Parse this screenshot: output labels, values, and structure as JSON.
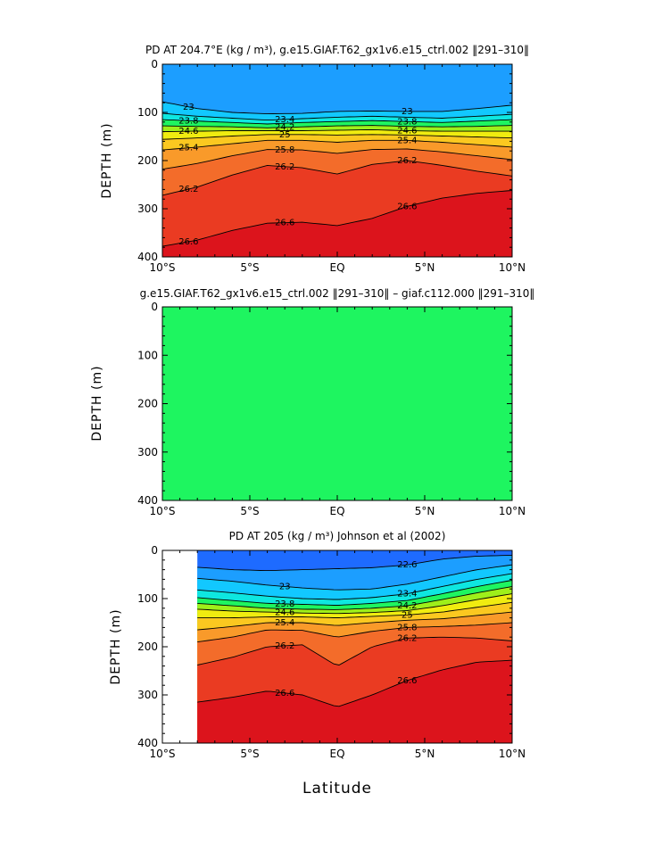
{
  "chart_data": [
    {
      "type": "heatmap",
      "title": "PD AT 204.7°E (kg / m³), g.e15.GIAF.T62_gx1v6.e15_ctrl.002 ‖291–310‖",
      "xlabel": "",
      "ylabel": "DEPTH (m)",
      "x_ticks": [
        "10°S",
        "5°S",
        "EQ",
        "5°N",
        "10°N"
      ],
      "y_ticks": [
        "0",
        "100",
        "200",
        "300",
        "400"
      ],
      "xlim": [
        -10,
        10
      ],
      "ylim": [
        400,
        0
      ],
      "contour_labels": [
        "23",
        "22.6",
        "23.4",
        "23.8",
        "24.2",
        "24.6",
        "25",
        "25.4",
        "25.8",
        "26.2",
        "26.6",
        "24.5",
        "25.8",
        "26.2"
      ],
      "contour_levels": [
        22.6,
        23,
        23.4,
        23.8,
        24.2,
        24.6,
        25,
        25.4,
        25.8,
        26.2,
        26.6
      ],
      "isopycnals": [
        {
          "level": 23.0,
          "x": [
            -10,
            -8,
            -6,
            -4,
            -2,
            0,
            2,
            4,
            6,
            8,
            10
          ],
          "y": [
            78,
            92,
            100,
            103,
            102,
            98,
            97,
            98,
            98,
            92,
            85
          ]
        },
        {
          "level": 23.4,
          "x": [
            -10,
            -8,
            -6,
            -4,
            -2,
            0,
            2,
            4,
            6,
            8,
            10
          ],
          "y": [
            102,
            108,
            112,
            116,
            113,
            110,
            108,
            110,
            112,
            108,
            104
          ]
        },
        {
          "level": 23.8,
          "x": [
            -10,
            -8,
            -6,
            -4,
            -2,
            0,
            2,
            4,
            6,
            8,
            10
          ],
          "y": [
            115,
            118,
            121,
            124,
            121,
            119,
            117,
            119,
            121,
            118,
            115
          ]
        },
        {
          "level": 24.2,
          "x": [
            -10,
            -8,
            -6,
            -4,
            -2,
            0,
            2,
            4,
            6,
            8,
            10
          ],
          "y": [
            128,
            129,
            130,
            132,
            130,
            128,
            127,
            129,
            130,
            129,
            127
          ]
        },
        {
          "level": 24.6,
          "x": [
            -10,
            -8,
            -6,
            -4,
            -2,
            0,
            2,
            4,
            6,
            8,
            10
          ],
          "y": [
            140,
            139,
            138,
            138,
            138,
            137,
            136,
            138,
            139,
            139,
            139
          ]
        },
        {
          "level": 25.0,
          "x": [
            -10,
            -8,
            -6,
            -4,
            -2,
            0,
            2,
            4,
            6,
            8,
            10
          ],
          "y": [
            156,
            153,
            149,
            146,
            146,
            147,
            146,
            147,
            149,
            151,
            153
          ]
        },
        {
          "level": 25.4,
          "x": [
            -10,
            -8,
            -6,
            -4,
            -2,
            0,
            2,
            4,
            6,
            8,
            10
          ],
          "y": [
            178,
            172,
            165,
            158,
            158,
            162,
            158,
            158,
            162,
            167,
            172
          ]
        },
        {
          "level": 25.8,
          "x": [
            -10,
            -8,
            -6,
            -4,
            -2,
            0,
            2,
            4,
            6,
            8,
            10
          ],
          "y": [
            218,
            206,
            190,
            177,
            178,
            185,
            177,
            176,
            182,
            190,
            198
          ]
        },
        {
          "level": 26.2,
          "x": [
            -10,
            -8,
            -6,
            -4,
            -2,
            0,
            2,
            4,
            6,
            8,
            10
          ],
          "y": [
            272,
            255,
            230,
            210,
            215,
            228,
            208,
            200,
            210,
            222,
            232
          ]
        },
        {
          "level": 26.6,
          "x": [
            -10,
            -8,
            -6,
            -4,
            -2,
            0,
            2,
            4,
            6,
            8,
            10
          ],
          "y": [
            378,
            365,
            345,
            330,
            328,
            335,
            320,
            295,
            278,
            268,
            262
          ]
        }
      ]
    },
    {
      "type": "heatmap",
      "title": "g.e15.GIAF.T62_gx1v6.e15_ctrl.002 ‖291–310‖ – giaf.c112.000 ‖291–310‖",
      "xlabel": "",
      "ylabel": "DEPTH (m)",
      "x_ticks": [
        "10°S",
        "5°S",
        "EQ",
        "5°N",
        "10°N"
      ],
      "y_ticks": [
        "0",
        "100",
        "200",
        "300",
        "400"
      ],
      "xlim": [
        -10,
        10
      ],
      "ylim": [
        400,
        0
      ],
      "fill_value": 0,
      "fill_color": "#1ef560"
    },
    {
      "type": "heatmap",
      "title": "PD AT 205 (kg / m³) Johnson et al (2002)",
      "xlabel": "Latitude",
      "ylabel": "DEPTH (m)",
      "x_ticks": [
        "10°S",
        "5°S",
        "EQ",
        "5°N",
        "10°N"
      ],
      "y_ticks": [
        "0",
        "100",
        "200",
        "300",
        "400"
      ],
      "xlim": [
        -10,
        10
      ],
      "ylim": [
        400,
        0
      ],
      "data_xlim": [
        -8,
        10
      ],
      "contour_labels": [
        "23",
        "22.2",
        "22.6",
        "23",
        "23.4",
        "23.8",
        "24.2",
        "24.6",
        "25",
        "25.4",
        "25.8",
        "26.2",
        "26.6"
      ],
      "contour_levels": [
        22.2,
        22.6,
        23,
        23.4,
        23.8,
        24.2,
        24.6,
        25,
        25.4,
        25.8,
        26.2,
        26.6
      ],
      "isopycnals": [
        {
          "level": 22.6,
          "x": [
            -8,
            -6,
            -4,
            -2,
            0,
            2,
            4,
            6,
            8,
            10
          ],
          "y": [
            35,
            40,
            42,
            40,
            38,
            36,
            30,
            18,
            12,
            10
          ]
        },
        {
          "level": 23.0,
          "x": [
            -8,
            -6,
            -4,
            -2,
            0,
            2,
            4,
            6,
            8,
            10
          ],
          "y": [
            58,
            64,
            72,
            78,
            82,
            80,
            70,
            55,
            40,
            30
          ]
        },
        {
          "level": 23.4,
          "x": [
            -8,
            -6,
            -4,
            -2,
            0,
            2,
            4,
            6,
            8,
            10
          ],
          "y": [
            82,
            88,
            95,
            100,
            102,
            98,
            90,
            75,
            60,
            48
          ]
        },
        {
          "level": 23.8,
          "x": [
            -8,
            -6,
            -4,
            -2,
            0,
            2,
            4,
            6,
            8,
            10
          ],
          "y": [
            98,
            104,
            110,
            112,
            114,
            110,
            104,
            90,
            75,
            62
          ]
        },
        {
          "level": 24.2,
          "x": [
            -8,
            -6,
            -4,
            -2,
            0,
            2,
            4,
            6,
            8,
            10
          ],
          "y": [
            110,
            115,
            120,
            122,
            123,
            120,
            115,
            102,
            88,
            75
          ]
        },
        {
          "level": 24.6,
          "x": [
            -8,
            -6,
            -4,
            -2,
            0,
            2,
            4,
            6,
            8,
            10
          ],
          "y": [
            122,
            126,
            128,
            130,
            131,
            129,
            125,
            115,
            102,
            90
          ]
        },
        {
          "level": 25.0,
          "x": [
            -8,
            -6,
            -4,
            -2,
            0,
            2,
            4,
            6,
            8,
            10
          ],
          "y": [
            140,
            140,
            138,
            138,
            140,
            137,
            134,
            128,
            118,
            108
          ]
        },
        {
          "level": 25.4,
          "x": [
            -8,
            -6,
            -4,
            -2,
            0,
            2,
            4,
            6,
            8,
            10
          ],
          "y": [
            165,
            158,
            150,
            150,
            156,
            150,
            145,
            142,
            135,
            128
          ]
        },
        {
          "level": 25.8,
          "x": [
            -8,
            -6,
            -4,
            -2,
            0,
            2,
            4,
            6,
            8,
            10
          ],
          "y": [
            190,
            180,
            165,
            166,
            180,
            168,
            160,
            158,
            155,
            150
          ]
        },
        {
          "level": 26.2,
          "x": [
            -8,
            -6,
            -4,
            -2,
            0,
            2,
            4,
            6,
            8,
            10
          ],
          "y": [
            238,
            222,
            200,
            196,
            240,
            200,
            182,
            180,
            182,
            188
          ]
        },
        {
          "level": 26.6,
          "x": [
            -8,
            -6,
            -4,
            -2,
            0,
            2,
            4,
            6,
            8,
            10
          ],
          "y": [
            315,
            305,
            292,
            300,
            325,
            300,
            270,
            248,
            232,
            228
          ]
        }
      ]
    }
  ],
  "palette": [
    "#1f1fff",
    "#1e6bff",
    "#1c9eff",
    "#12c8ff",
    "#0ee7e0",
    "#1ef560",
    "#9eef1a",
    "#f0ec10",
    "#fbc820",
    "#f99a2a",
    "#f36c2a",
    "#ea3b22",
    "#dc141c",
    "#b80a10"
  ]
}
